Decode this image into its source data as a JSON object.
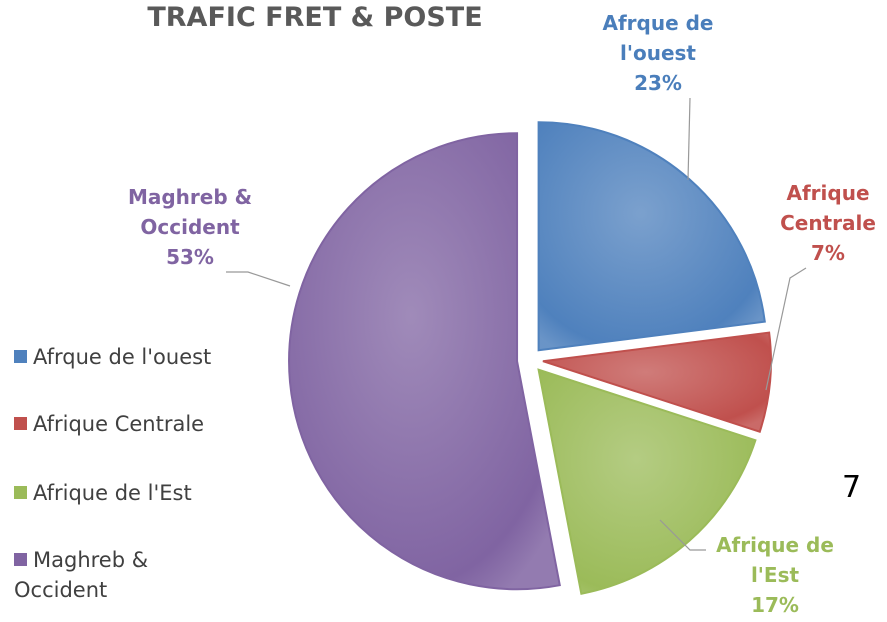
{
  "chart_data": {
    "type": "pie",
    "title": "TRAFIC FRET & POSTE",
    "categories": [
      "Afrque de l'ouest",
      "Afrique Centrale",
      "Afrique de l'Est",
      "Maghreb & Occident"
    ],
    "values": [
      23,
      7,
      17,
      53
    ],
    "value_labels": [
      "23%",
      "7%",
      "17%",
      "53%"
    ],
    "colors": [
      "#4f81bd",
      "#c0504d",
      "#9bbb59",
      "#8064a2"
    ],
    "legend": "left"
  },
  "annotation": "7"
}
